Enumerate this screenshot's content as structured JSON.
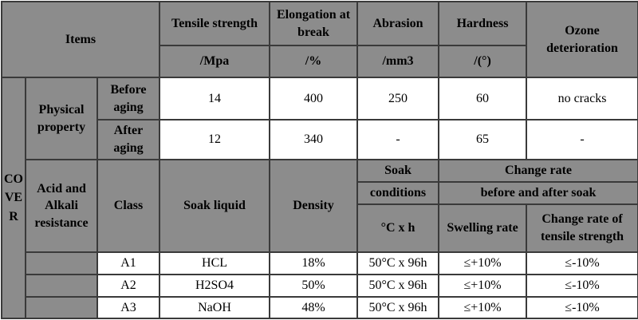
{
  "table": {
    "header": {
      "items": "Items",
      "columns": [
        {
          "name": "Tensile strength",
          "unit": "/Mpa"
        },
        {
          "name": "Elongation at break",
          "unit": "/%"
        },
        {
          "name": "Abrasion",
          "unit": "/mm3"
        },
        {
          "name": "Hardness",
          "unit": "/(°)"
        }
      ],
      "ozone": "Ozone deterioration"
    },
    "cover": "COVER",
    "physical": {
      "label": "Physical property",
      "rows": [
        {
          "label": "Before aging",
          "values": [
            14,
            400,
            250,
            60,
            "no cracks"
          ]
        },
        {
          "label": "After aging",
          "values": [
            12,
            340,
            "-",
            65,
            "-"
          ]
        }
      ]
    },
    "resistance": {
      "label": "Acid and Alkali resistance",
      "headers": {
        "class": "Class",
        "liquid": "Soak liquid",
        "density": "Density",
        "soak": "Soak",
        "conditions": "conditions",
        "unit": "°C x h",
        "change_rate": "Change rate",
        "change_rate_2": "before and after soak",
        "swelling": "Swelling rate",
        "tensile": "Change rate of tensile strength"
      },
      "rows": [
        [
          "A1",
          "HCL",
          "18%",
          "50°C x 96h",
          "≤+10%",
          "≤-10%"
        ],
        [
          "A2",
          "H2SO4",
          "50%",
          "50°C x 96h",
          "≤+10%",
          "≤-10%"
        ],
        [
          "A3",
          "NaOH",
          "48%",
          "50°C x 96h",
          "≤+10%",
          "≤-10%"
        ]
      ]
    }
  }
}
